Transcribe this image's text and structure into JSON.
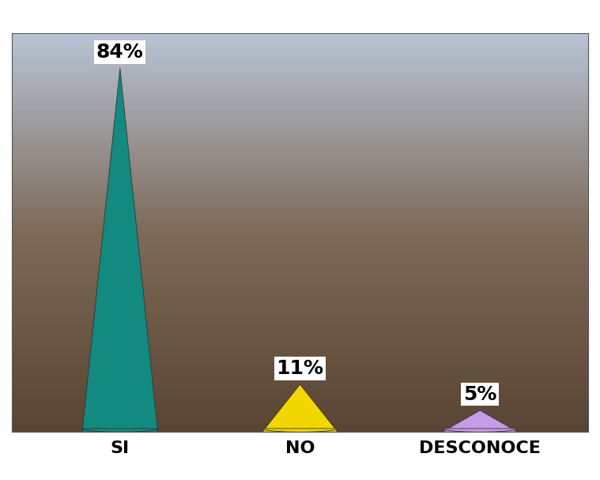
{
  "chart_data": {
    "type": "cone",
    "categories": [
      "SI",
      "NO",
      "DESCONOCE"
    ],
    "values": [
      84,
      11,
      5
    ],
    "value_labels": [
      "84%",
      "11%",
      "5%"
    ],
    "colors": [
      "#138a80",
      "#f2d600",
      "#c69be8"
    ],
    "ylim": [
      0,
      92
    ],
    "data_labels": true,
    "tick_labels": "x"
  }
}
